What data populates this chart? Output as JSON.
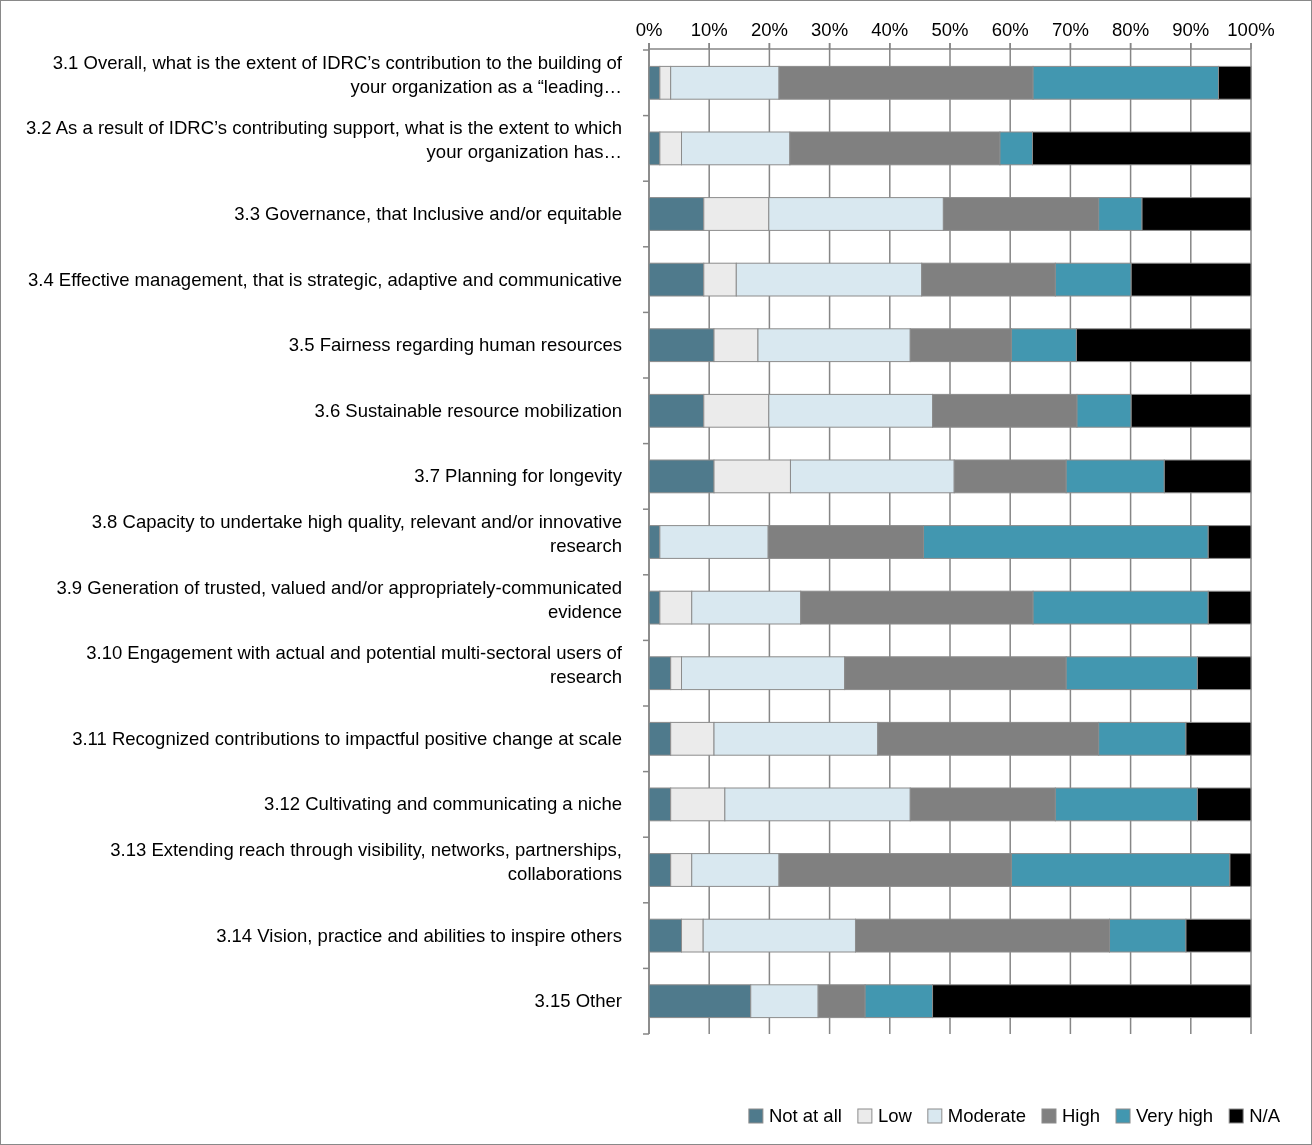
{
  "chart_data": {
    "type": "bar",
    "orientation": "horizontal",
    "stacked": true,
    "legend": "bottom right",
    "grid": "x",
    "categories": [
      "3.1 Overall, what is the extent of IDRC’s contribution to the building of your organization as a “leading…",
      "3.2 As a result of IDRC’s contributing support, what is the extent to which your organization has…",
      "3.3 Governance, that Inclusive and/or equitable",
      "3.4 Effective management, that is strategic, adaptive and communicative",
      "3.5 Fairness regarding human resources",
      "3.6 Sustainable resource mobilization",
      "3.7 Planning for longevity",
      "3.8 Capacity to undertake high quality, relevant and/or innovative research",
      "3.9 Generation of trusted, valued and/or appropriately-communicated evidence",
      "3.10 Engagement with actual and potential multi-sectoral users of research",
      "3.11 Recognized contributions to impactful positive change at scale",
      "3.12 Cultivating and communicating a niche",
      "3.13 Extending reach through visibility, networks, partnerships, collaborations",
      "3.14 Vision, practice and abilities to inspire others",
      "3.15 Other"
    ],
    "xlim": [
      0,
      100
    ],
    "xticks": [
      {
        "value": 0,
        "label": "0%"
      },
      {
        "value": 10,
        "label": "10%"
      },
      {
        "value": 20,
        "label": "20%"
      },
      {
        "value": 30,
        "label": "30%"
      },
      {
        "value": 40,
        "label": "40%"
      },
      {
        "value": 50,
        "label": "50%"
      },
      {
        "value": 60,
        "label": "60%"
      },
      {
        "value": 70,
        "label": "70%"
      },
      {
        "value": 80,
        "label": "80%"
      },
      {
        "value": 90,
        "label": "90%"
      },
      {
        "value": 100,
        "label": "100%"
      }
    ],
    "series": [
      {
        "name": "Not at all",
        "color": "#4f7a8c",
        "values": [
          1.8,
          1.8,
          9.1,
          9.1,
          10.8,
          9.1,
          10.8,
          1.8,
          1.8,
          3.6,
          3.6,
          3.6,
          3.6,
          5.4,
          16.9
        ]
      },
      {
        "name": "Low",
        "color": "#ebebeb",
        "values": [
          1.8,
          3.6,
          10.8,
          5.4,
          7.3,
          10.8,
          12.7,
          0,
          5.3,
          1.8,
          7.2,
          9.0,
          3.5,
          3.6,
          0
        ]
      },
      {
        "name": "Moderate",
        "color": "#d9e8f0",
        "values": [
          18.0,
          18.0,
          29.0,
          30.8,
          25.3,
          27.2,
          27.2,
          18.0,
          18.1,
          27.1,
          27.2,
          30.8,
          14.5,
          25.3,
          11.2
        ]
      },
      {
        "name": "High",
        "color": "#808080",
        "values": [
          42.2,
          34.9,
          25.8,
          22.2,
          16.8,
          24.0,
          18.6,
          25.8,
          38.6,
          36.8,
          36.7,
          24.1,
          38.6,
          42.2,
          7.8
        ]
      },
      {
        "name": "Very high",
        "color": "#4297b0",
        "values": [
          30.8,
          5.4,
          7.2,
          12.6,
          10.8,
          9.0,
          16.3,
          47.3,
          29.1,
          21.8,
          14.5,
          23.6,
          36.3,
          12.7,
          11.2
        ]
      },
      {
        "name": "N/A",
        "color": "#000000",
        "values": [
          5.4,
          36.3,
          18.1,
          19.9,
          29.0,
          19.9,
          14.4,
          7.1,
          7.1,
          8.9,
          10.8,
          8.9,
          3.5,
          10.8,
          52.9
        ]
      }
    ]
  }
}
